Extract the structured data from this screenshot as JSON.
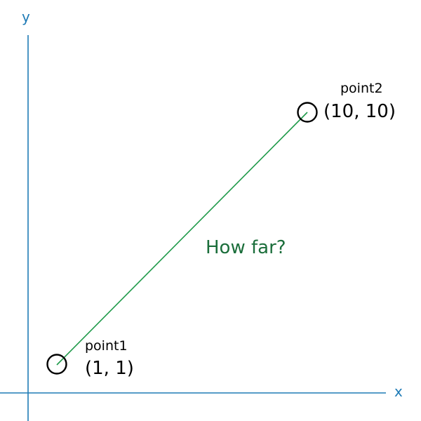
{
  "axes": {
    "x_label": "x",
    "y_label": "y",
    "color": "#1f7bb6"
  },
  "segment": {
    "color": "#1f9a4a",
    "question": "How far?",
    "question_color": "#1b6e3b"
  },
  "points": [
    {
      "name": "point1",
      "coords": "(1, 1)",
      "x": 1,
      "y": 1
    },
    {
      "name": "point2",
      "coords": "(10, 10)",
      "x": 10,
      "y": 10
    }
  ]
}
